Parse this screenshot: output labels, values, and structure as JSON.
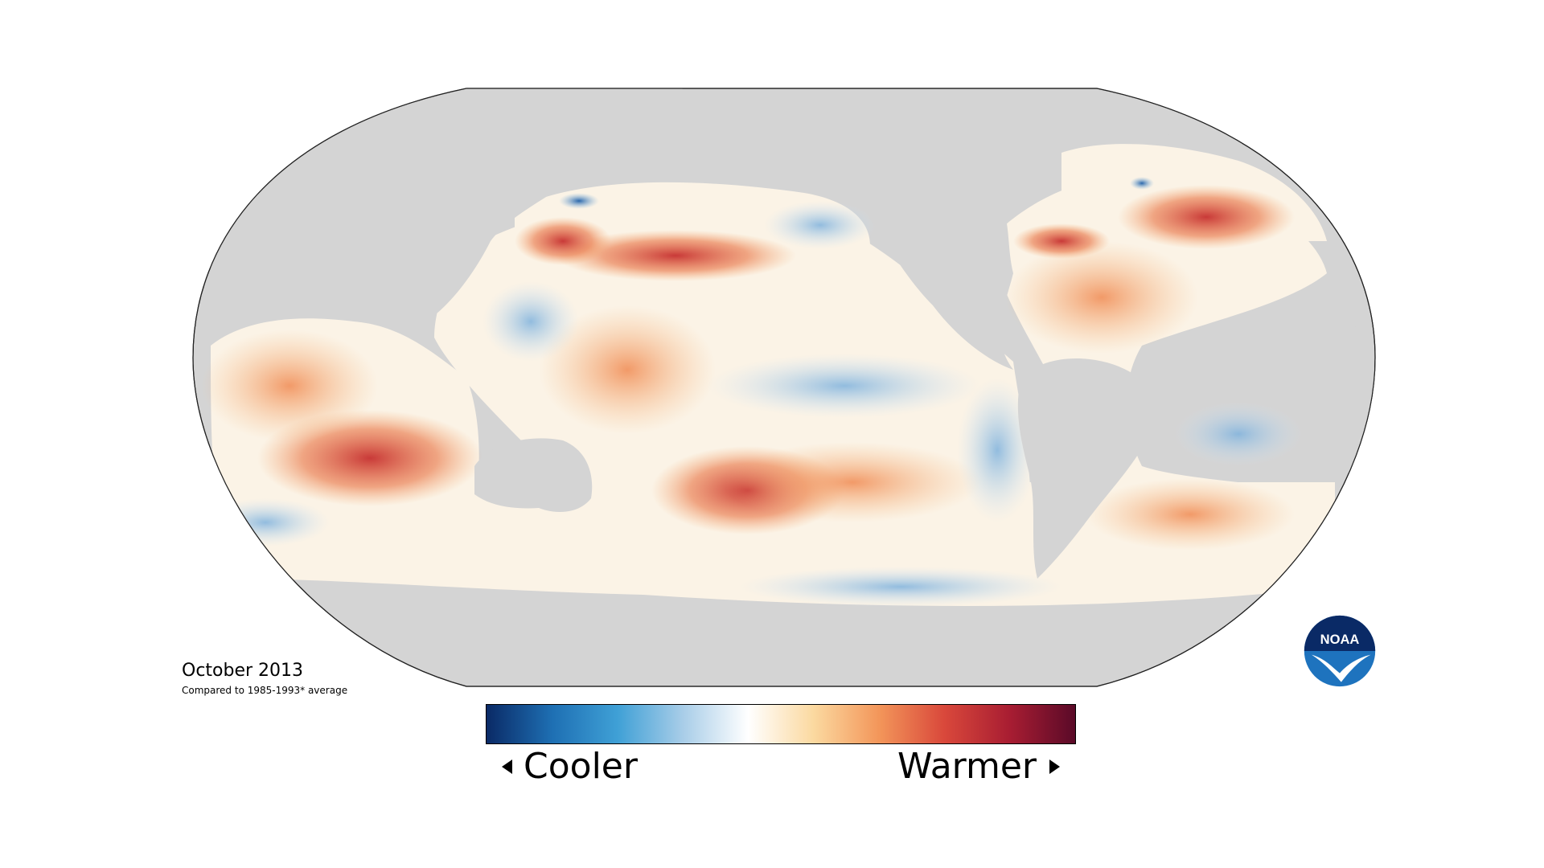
{
  "map": {
    "date_label": "October 2013",
    "baseline_note": "Compared to 1985-1993* average",
    "land_color": "#d4d4d4",
    "ocean_neutral_color": "#fdf9f0"
  },
  "legend": {
    "cooler_label": "Cooler",
    "warmer_label": "Warmer",
    "color_stops": [
      "#0a2a66",
      "#1e6fb3",
      "#3fa0d6",
      "#a8cde8",
      "#ffffff",
      "#fbd9a0",
      "#f3965a",
      "#d9483b",
      "#a81d32",
      "#5a0a28"
    ],
    "left_arrow_icon": "triangle-left-icon",
    "right_arrow_icon": "triangle-right-icon"
  },
  "logo": {
    "text": "NOAA",
    "icon": "noaa-logo-icon",
    "primary_color": "#1e73be",
    "secondary_color": "#0a2a66"
  }
}
